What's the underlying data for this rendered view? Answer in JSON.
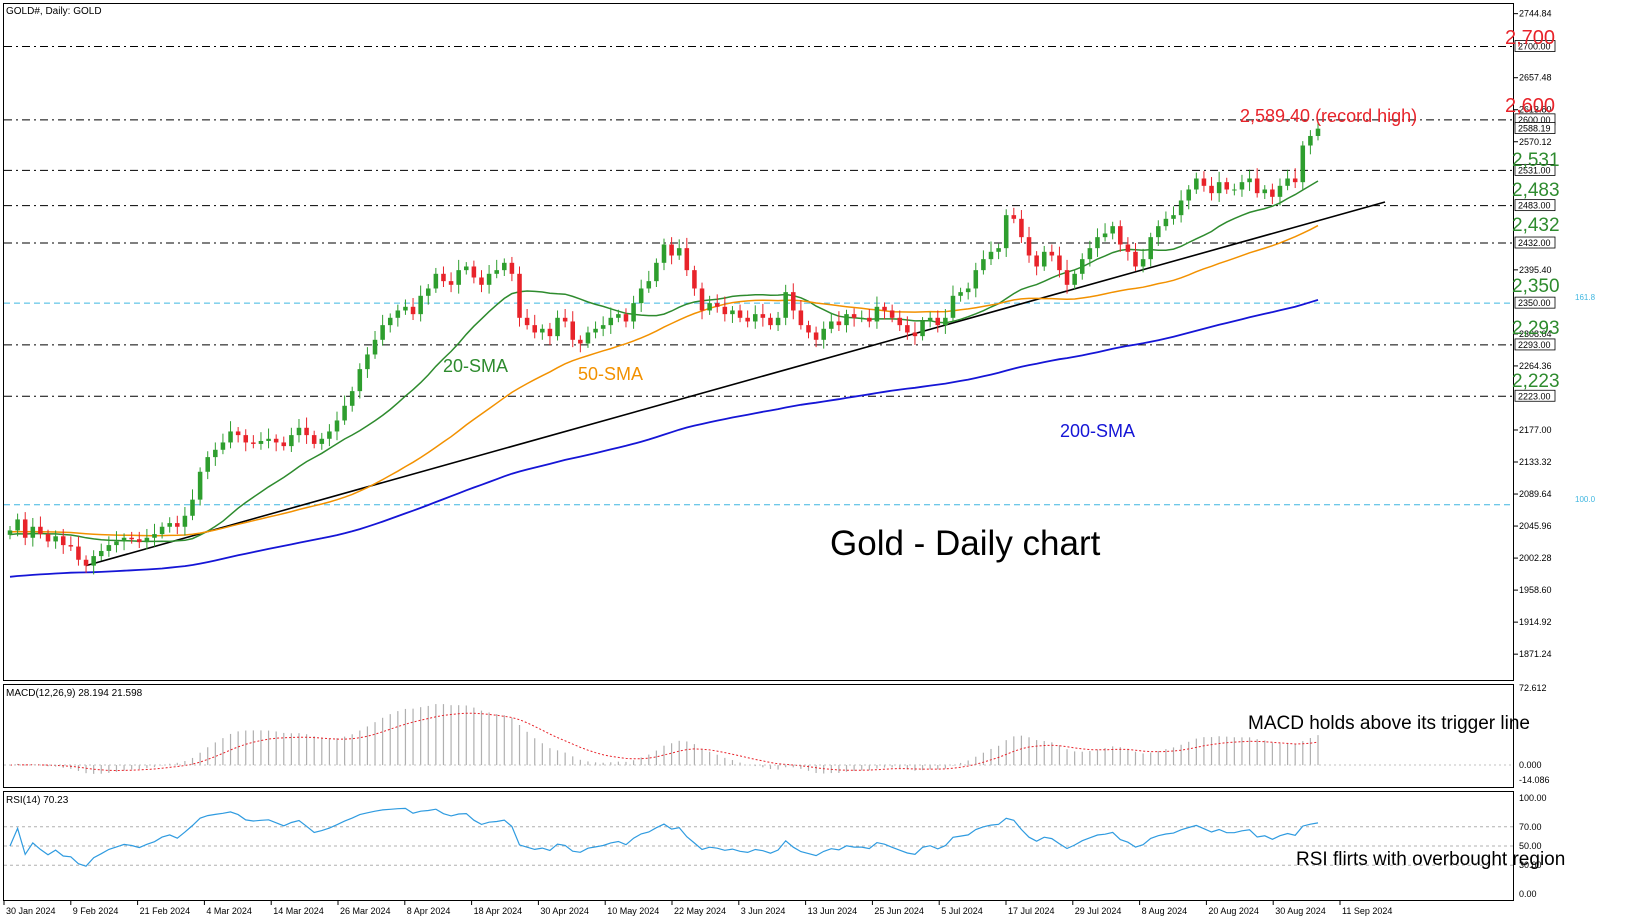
{
  "header": {
    "main_label": "GOLD#, Daily:  GOLD",
    "macd_label": "MACD(12,26,9) 28.194 21.598",
    "rsi_label": "RSI(14) 70.23"
  },
  "title": "Gold - Daily chart",
  "colors": {
    "bull": "#2e9e2e",
    "bear": "#e8232a",
    "sma20": "#2e8b2e",
    "sma50": "#f29100",
    "sma200": "#1515d6",
    "trendline": "#000000",
    "level_text_red": "#e8232a",
    "level_text_green": "#2e8b2e",
    "fib_line": "#3fb6e0",
    "macd_hist": "#b0b0b0",
    "macd_signal": "#e8232a",
    "rsi_line": "#2f9be0"
  },
  "x_axis": {
    "ticks": [
      "30 Jan 2024",
      "9 Feb 2024",
      "21 Feb 2024",
      "4 Mar 2024",
      "14 Mar 2024",
      "26 Mar 2024",
      "8 Apr 2024",
      "18 Apr 2024",
      "30 Apr 2024",
      "10 May 2024",
      "22 May 2024",
      "3 Jun 2024",
      "13 Jun 2024",
      "25 Jun 2024",
      "5 Jul 2024",
      "17 Jul 2024",
      "29 Jul 2024",
      "8 Aug 2024",
      "20 Aug 2024",
      "30 Aug 2024",
      "11 Sep 2024"
    ]
  },
  "y_axis_main": {
    "ticks": [
      "2744.84",
      "2657.48",
      "2613.80",
      "2570.12",
      "2395.40",
      "2308.04",
      "2264.36",
      "2177.00",
      "2133.32",
      "2089.64",
      "2045.96",
      "2002.28",
      "1958.60",
      "1914.92",
      "1871.24"
    ],
    "boxed": [
      "2700.00",
      "2600.00",
      "2588.19",
      "2531.00",
      "2483.00",
      "2432.00",
      "2350.00",
      "2293.00",
      "2223.00"
    ],
    "fib_labels": [
      "161.8",
      "100.0"
    ]
  },
  "y_axis_macd": {
    "ticks": [
      "72.612",
      "0.000",
      "-14.086"
    ]
  },
  "y_axis_rsi": {
    "ticks": [
      "100.00",
      "70.00",
      "50.00",
      "30.00",
      "0.00"
    ]
  },
  "annotations": {
    "levels_red": [
      "2,700",
      "2,600"
    ],
    "levels_green": [
      "2,531",
      "2,483",
      "2,432",
      "2,350",
      "2,293",
      "2,223"
    ],
    "record_high": "2,589.40 (record high)",
    "sma20": "20-SMA",
    "sma50": "50-SMA",
    "sma200": "200-SMA",
    "macd_note": "MACD holds above its trigger line",
    "rsi_note": "RSI flirts with overbought region"
  },
  "chart_data": [
    {
      "type": "candlestick",
      "title": "Gold - Daily chart",
      "y_range": [
        1836,
        2758
      ],
      "horizontal_levels": [
        {
          "value": 2700,
          "label": "2,700",
          "color": "red"
        },
        {
          "value": 2600,
          "label": "2,600",
          "color": "red"
        },
        {
          "value": 2531,
          "label": "2,531",
          "color": "green"
        },
        {
          "value": 2483,
          "label": "2,483",
          "color": "green"
        },
        {
          "value": 2432,
          "label": "2,432",
          "color": "green"
        },
        {
          "value": 2350,
          "label": "2,350",
          "color": "green",
          "fib": "161.8"
        },
        {
          "value": 2293,
          "label": "2,293",
          "color": "green"
        },
        {
          "value": 2223,
          "label": "2,223",
          "color": "green"
        },
        {
          "value": 2075,
          "label": "",
          "fib": "100.0"
        }
      ],
      "record_high": 2589.4,
      "last_price": 2588.19,
      "close": [
        2040,
        2055,
        2030,
        2045,
        2035,
        2025,
        2032,
        2020,
        2018,
        2000,
        1992,
        2005,
        2012,
        2020,
        2025,
        2030,
        2028,
        2024,
        2030,
        2035,
        2045,
        2050,
        2045,
        2060,
        2082,
        2120,
        2140,
        2150,
        2160,
        2175,
        2170,
        2160,
        2158,
        2162,
        2165,
        2160,
        2155,
        2170,
        2180,
        2170,
        2158,
        2165,
        2175,
        2190,
        2210,
        2230,
        2260,
        2280,
        2300,
        2320,
        2330,
        2340,
        2345,
        2335,
        2360,
        2370,
        2390,
        2380,
        2375,
        2395,
        2400,
        2385,
        2375,
        2390,
        2395,
        2405,
        2390,
        2330,
        2320,
        2310,
        2315,
        2305,
        2330,
        2325,
        2300,
        2295,
        2310,
        2315,
        2320,
        2330,
        2335,
        2325,
        2350,
        2370,
        2380,
        2405,
        2430,
        2415,
        2425,
        2395,
        2370,
        2340,
        2350,
        2345,
        2335,
        2340,
        2330,
        2325,
        2335,
        2330,
        2320,
        2330,
        2365,
        2340,
        2320,
        2310,
        2300,
        2315,
        2325,
        2320,
        2335,
        2330,
        2330,
        2325,
        2345,
        2340,
        2330,
        2320,
        2310,
        2305,
        2325,
        2330,
        2320,
        2330,
        2360,
        2365,
        2370,
        2395,
        2410,
        2420,
        2425,
        2470,
        2465,
        2440,
        2415,
        2400,
        2420,
        2415,
        2395,
        2375,
        2390,
        2410,
        2425,
        2440,
        2445,
        2455,
        2430,
        2420,
        2400,
        2410,
        2440,
        2455,
        2465,
        2470,
        2490,
        2505,
        2520,
        2510,
        2500,
        2515,
        2505,
        2505,
        2515,
        2520,
        2500,
        2505,
        2495,
        2510,
        2520,
        2515,
        2565,
        2578,
        2588
      ],
      "ma": {
        "sma20_start": 2034,
        "sma50_start": 2038,
        "sma200_start": 1976
      }
    },
    {
      "type": "bar",
      "title": "MACD(12,26,9) 28.194 21.598",
      "y_range": [
        -14.086,
        72.612
      ],
      "series": [
        {
          "name": "MACD",
          "values_end": 28.194
        },
        {
          "name": "Signal",
          "values_end": 21.598
        }
      ]
    },
    {
      "type": "line",
      "title": "RSI(14) 70.23",
      "y_range": [
        0,
        100
      ],
      "levels": [
        70,
        50,
        30
      ],
      "series": [
        {
          "name": "RSI(14)",
          "values_end": 70.23
        }
      ]
    }
  ]
}
